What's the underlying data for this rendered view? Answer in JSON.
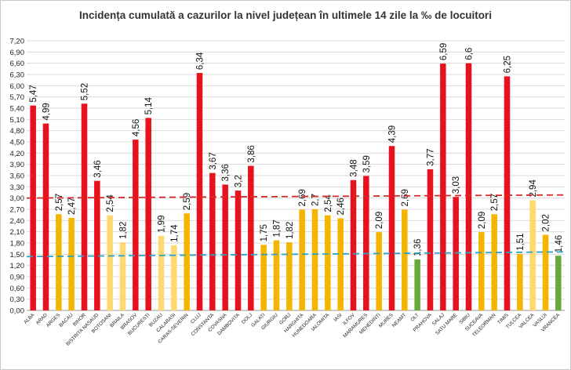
{
  "chart_data": {
    "type": "bar",
    "title": "Incidența cumulată a cazurilor la nivel județean în ultimele 14 zile la ‰ de locuitori",
    "categories": [
      "ALBA",
      "ARAD",
      "ARGES",
      "BACAU",
      "BIHOR",
      "BISTRITA NASAUD",
      "BOTOSANI",
      "BRAILA",
      "BRASOV",
      "BUCURESTI",
      "BUZAU",
      "CALARASI",
      "CARAS-SEVERIN",
      "CLUJ",
      "CONSTANTA",
      "COVASNA",
      "DAMBOVITA",
      "DOLJ",
      "GALATI",
      "GIURGIU",
      "GORJ",
      "HARGHITA",
      "HUNEDOARA",
      "IALOMITA",
      "IASI",
      "ILFOV",
      "MARAMURES",
      "MEHEDINTI",
      "MURES",
      "NEAMT",
      "OLT",
      "PRAHOVA",
      "SALAJ",
      "SATU MARE",
      "SIBIU",
      "SUCEAVA",
      "TELEORMAN",
      "TIMIS",
      "TULCEA",
      "VALCEA",
      "VASLUI",
      "VRANCEA"
    ],
    "values": [
      5.47,
      4.99,
      2.57,
      2.47,
      5.52,
      3.46,
      2.54,
      1.82,
      4.56,
      5.14,
      1.99,
      1.74,
      2.59,
      6.34,
      3.67,
      3.36,
      3.2,
      3.86,
      1.75,
      1.87,
      1.82,
      2.69,
      2.7,
      2.54,
      2.46,
      3.48,
      3.59,
      2.09,
      4.39,
      2.69,
      1.36,
      3.77,
      6.59,
      3.03,
      6.6,
      2.09,
      2.57,
      6.25,
      1.51,
      2.94,
      2.02,
      1.46
    ],
    "labels": [
      "5,47",
      "4,99",
      "2,57",
      "2,47",
      "5,52",
      "3,46",
      "2,54",
      "1,82",
      "4,56",
      "5,14",
      "1,99",
      "1,74",
      "2,59",
      "6,34",
      "3,67",
      "3,36",
      "3,2",
      "3,86",
      "1,75",
      "1,87",
      "1,82",
      "2,69",
      "2,7",
      "2,54",
      "2,46",
      "3,48",
      "3,59",
      "2,09",
      "4,39",
      "2,69",
      "1,36",
      "3,77",
      "6,59",
      "3,03",
      "6,6",
      "2,09",
      "2,57",
      "6,25",
      "1,51",
      "2,94",
      "2,02",
      "1,46"
    ],
    "yticks": [
      "0,00",
      "0,30",
      "0,60",
      "0,90",
      "1,20",
      "1,50",
      "1,80",
      "2,10",
      "2,40",
      "2,70",
      "3,00",
      "3,30",
      "3,60",
      "3,90",
      "4,20",
      "4,50",
      "4,80",
      "5,10",
      "5,40",
      "5,70",
      "6,00",
      "6,30",
      "6,60",
      "6,90",
      "7,20"
    ],
    "ylim": [
      0,
      7.2
    ],
    "thresholds": [
      1.5,
      3.0
    ],
    "threshold_colors": {
      "low": "#d42a2a",
      "high": "#2aa3c8"
    },
    "colors": {
      "red": "#e8121e",
      "orange": "#f5b400",
      "lightorange": "#ffd870",
      "green": "#66aa3c",
      "grid": "#d9d9d9",
      "text": "#222222"
    },
    "bar_colors": [
      "red",
      "red",
      "orange",
      "orange",
      "red",
      "red",
      "lightorange",
      "lightorange",
      "red",
      "red",
      "lightorange",
      "lightorange",
      "orange",
      "red",
      "red",
      "red",
      "red",
      "red",
      "orange",
      "orange",
      "orange",
      "orange",
      "orange",
      "orange",
      "orange",
      "red",
      "red",
      "orange",
      "red",
      "orange",
      "green",
      "red",
      "red",
      "red",
      "red",
      "orange",
      "orange",
      "red",
      "orange",
      "lightorange",
      "orange",
      "green"
    ],
    "grid": true
  }
}
